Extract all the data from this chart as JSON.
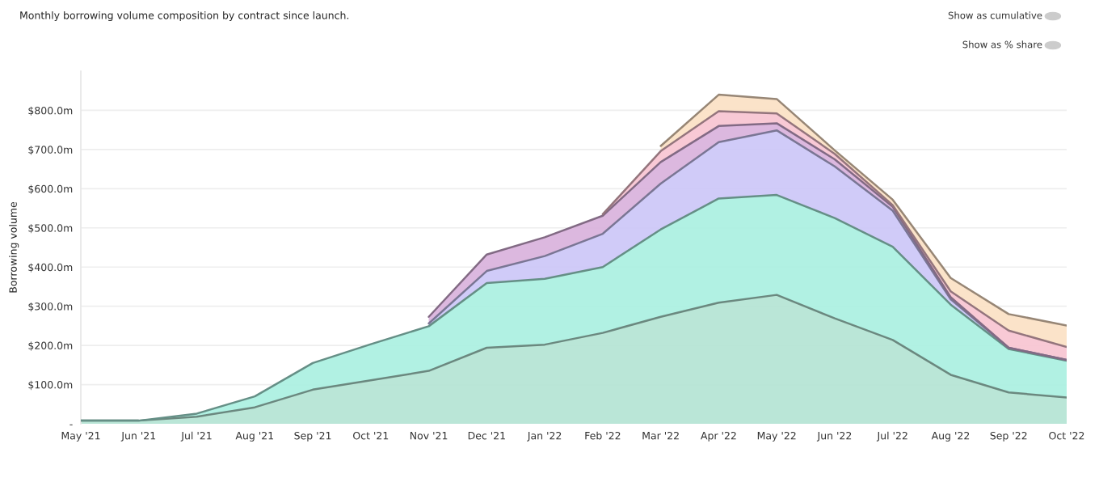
{
  "chart_data": {
    "type": "area",
    "stacked": true,
    "title": "Monthly borrowing volume composition by contract since launch.",
    "ylabel": "Borrowing volume",
    "annotations": [
      "Show as cumulative",
      "Show as % share"
    ],
    "categories": [
      "May '21",
      "Jun '21",
      "Jul '21",
      "Aug '21",
      "Sep '21",
      "Oct '21",
      "Nov '21",
      "Dec '21",
      "Jan '22",
      "Feb '22",
      "Mar '22",
      "Apr '22",
      "May '22",
      "Jun '22",
      "Jul '22",
      "Aug '22",
      "Sep '22",
      "Oct '22"
    ],
    "series": [
      {
        "color": "#b3e3d3",
        "values": [
          8,
          8,
          18,
          42,
          87,
          111,
          135,
          194,
          202,
          232,
          273,
          309,
          329,
          269,
          214,
          125,
          80,
          67
        ]
      },
      {
        "color": "#a8efe0",
        "values": [
          0,
          0,
          8,
          28,
          68,
          92,
          114,
          165,
          168,
          168,
          223,
          266,
          255,
          256,
          238,
          179,
          111,
          94
        ]
      },
      {
        "color": "#cbc5f7",
        "values": [
          null,
          null,
          null,
          null,
          null,
          null,
          7,
          31,
          58,
          85,
          117,
          144,
          165,
          132,
          92,
          14,
          3,
          2
        ]
      },
      {
        "color": "#d8b0dc",
        "values": [
          null,
          null,
          null,
          null,
          null,
          null,
          17,
          42,
          48,
          46,
          55,
          41,
          18,
          18,
          10,
          5,
          0,
          0
        ]
      },
      {
        "color": "#f7c3d0",
        "values": [
          null,
          null,
          null,
          null,
          null,
          null,
          null,
          null,
          null,
          4,
          28,
          38,
          25,
          14,
          4,
          15,
          44,
          33
        ]
      },
      {
        "color": "#fbe0c3",
        "values": [
          null,
          null,
          null,
          null,
          null,
          null,
          null,
          null,
          null,
          null,
          13,
          42,
          37,
          9,
          14,
          34,
          42,
          55
        ]
      }
    ],
    "ylim": [
      0,
      900
    ],
    "yticks": [
      {
        "value": 0,
        "label": "-"
      },
      {
        "value": 100,
        "label": "$100.0m"
      },
      {
        "value": 200,
        "label": "$200.0m"
      },
      {
        "value": 300,
        "label": "$300.0m"
      },
      {
        "value": 400,
        "label": "$400.0m"
      },
      {
        "value": 500,
        "label": "$500.0m"
      },
      {
        "value": 600,
        "label": "$600.0m"
      },
      {
        "value": 700,
        "label": "$700.0m"
      },
      {
        "value": 800,
        "label": "$800.0m"
      }
    ],
    "grid": "y",
    "legend": false
  }
}
